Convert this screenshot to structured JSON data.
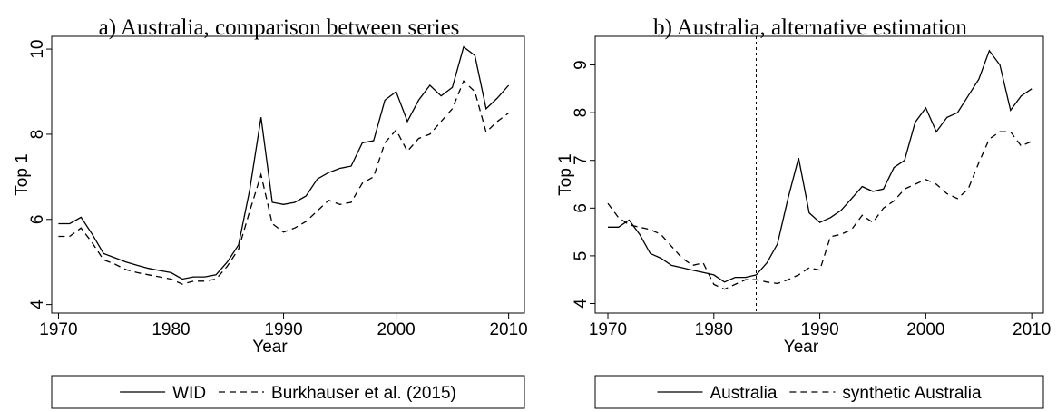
{
  "chart_data": [
    {
      "type": "line",
      "title": "a) Australia, comparison between series",
      "x_label": "Year",
      "y_label": "Top 1",
      "x": [
        1970,
        1971,
        1972,
        1973,
        1974,
        1975,
        1976,
        1977,
        1978,
        1979,
        1980,
        1981,
        1982,
        1983,
        1984,
        1985,
        1986,
        1987,
        1988,
        1989,
        1990,
        1991,
        1992,
        1993,
        1994,
        1995,
        1996,
        1997,
        1998,
        1999,
        2000,
        2001,
        2002,
        2003,
        2004,
        2005,
        2006,
        2007,
        2008,
        2009,
        2010
      ],
      "series": [
        {
          "name": "WID",
          "color": "#000000",
          "style": "solid",
          "values": [
            5.9,
            5.9,
            6.05,
            5.65,
            5.2,
            5.1,
            5.0,
            4.92,
            4.85,
            4.8,
            4.75,
            4.6,
            4.65,
            4.65,
            4.7,
            5.0,
            5.4,
            6.7,
            8.4,
            6.4,
            6.35,
            6.4,
            6.55,
            6.95,
            7.1,
            7.2,
            7.25,
            7.8,
            7.85,
            8.8,
            9.0,
            8.3,
            8.8,
            9.15,
            8.9,
            9.1,
            10.05,
            9.85,
            8.6,
            8.85,
            9.15
          ]
        },
        {
          "name": "Burkhauser et al. (2015)",
          "color": "#000000",
          "style": "dashed",
          "values": [
            5.6,
            5.6,
            5.8,
            5.45,
            5.05,
            4.95,
            4.82,
            4.75,
            4.7,
            4.65,
            4.6,
            4.48,
            4.55,
            4.55,
            4.6,
            4.9,
            5.3,
            6.2,
            7.05,
            5.9,
            5.7,
            5.8,
            5.95,
            6.2,
            6.45,
            6.35,
            6.4,
            6.85,
            7.0,
            7.8,
            8.1,
            7.6,
            7.9,
            8.0,
            8.3,
            8.6,
            9.25,
            9.0,
            8.05,
            8.3,
            8.5
          ]
        }
      ],
      "xlim": [
        1969.4,
        2011.4
      ],
      "xticks": [
        1970,
        1980,
        1990,
        2000,
        2010
      ],
      "ylim": [
        3.8,
        10.3
      ],
      "yticks": [
        4,
        6,
        8,
        10
      ],
      "legend": "bottom"
    },
    {
      "type": "line",
      "title": "b) Australia, alternative estimation",
      "x_label": "Year",
      "y_label": "Top 1",
      "x": [
        1970,
        1971,
        1972,
        1973,
        1974,
        1975,
        1976,
        1977,
        1978,
        1979,
        1980,
        1981,
        1982,
        1983,
        1984,
        1985,
        1986,
        1987,
        1988,
        1989,
        1990,
        1991,
        1992,
        1993,
        1994,
        1995,
        1996,
        1997,
        1998,
        1999,
        2000,
        2001,
        2002,
        2003,
        2004,
        2005,
        2006,
        2007,
        2008,
        2009,
        2010
      ],
      "series": [
        {
          "name": "Australia",
          "color": "#000000",
          "style": "solid",
          "values": [
            5.6,
            5.6,
            5.75,
            5.45,
            5.05,
            4.95,
            4.8,
            4.75,
            4.7,
            4.65,
            4.6,
            4.45,
            4.55,
            4.55,
            4.6,
            4.85,
            5.25,
            6.2,
            7.05,
            5.9,
            5.7,
            5.8,
            5.95,
            6.2,
            6.45,
            6.35,
            6.4,
            6.85,
            7.0,
            7.8,
            8.1,
            7.6,
            7.9,
            8.0,
            8.35,
            8.7,
            9.3,
            9.0,
            8.05,
            8.35,
            8.5
          ]
        },
        {
          "name": "synthetic Australia",
          "color": "#000000",
          "style": "dashed",
          "values": [
            6.1,
            5.8,
            5.65,
            5.6,
            5.55,
            5.45,
            5.2,
            4.95,
            4.8,
            4.85,
            4.4,
            4.3,
            4.4,
            4.5,
            4.5,
            4.45,
            4.42,
            4.5,
            4.6,
            4.75,
            4.7,
            5.4,
            5.45,
            5.55,
            5.85,
            5.7,
            6.0,
            6.15,
            6.4,
            6.5,
            6.6,
            6.5,
            6.3,
            6.2,
            6.4,
            6.95,
            7.45,
            7.6,
            7.6,
            7.3,
            7.4
          ]
        }
      ],
      "xlim": [
        1968.8,
        2011.1
      ],
      "xticks": [
        1970,
        1980,
        1990,
        2000,
        2010
      ],
      "ylim": [
        3.8,
        9.6
      ],
      "yticks": [
        4,
        5,
        6,
        7,
        8,
        9
      ],
      "vline": 1984,
      "legend": "bottom"
    }
  ]
}
